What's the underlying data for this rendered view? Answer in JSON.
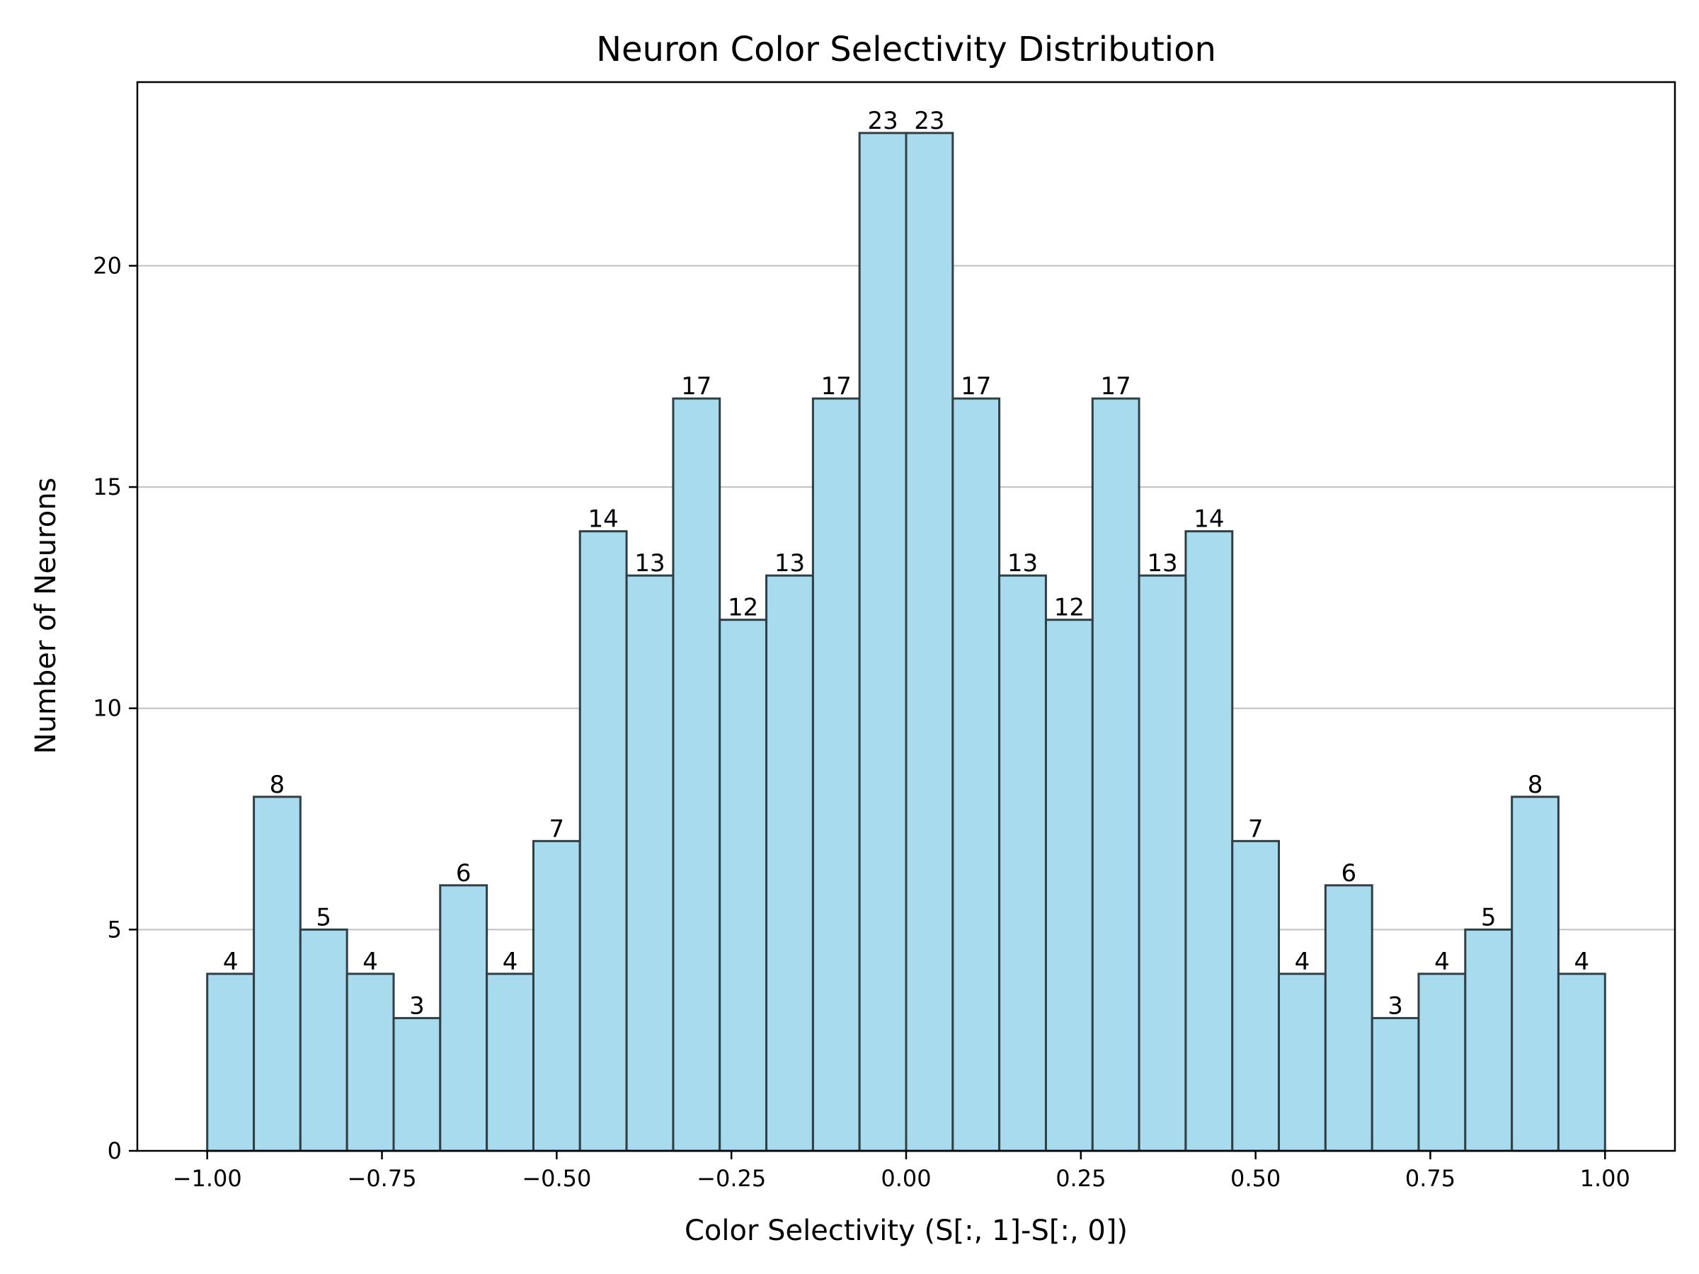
{
  "chart_data": {
    "type": "bar",
    "title": "Neuron Color Selectivity Distribution",
    "xlabel": "Color Selectivity (S[:, 1]-S[:, 0])",
    "ylabel": "Number of Neurons",
    "bin_edges": [
      -1.0,
      -0.9333,
      -0.8667,
      -0.8,
      -0.7333,
      -0.6667,
      -0.6,
      -0.5333,
      -0.4667,
      -0.4,
      -0.3333,
      -0.2667,
      -0.2,
      -0.1333,
      -0.0667,
      0.0,
      0.0667,
      0.1333,
      0.2,
      0.2667,
      0.3333,
      0.4,
      0.4667,
      0.5333,
      0.6,
      0.6667,
      0.7333,
      0.8,
      0.8667,
      0.9333,
      1.0
    ],
    "values": [
      4,
      8,
      5,
      4,
      3,
      6,
      4,
      7,
      14,
      13,
      17,
      12,
      13,
      17,
      23,
      23,
      17,
      13,
      12,
      17,
      13,
      14,
      7,
      4,
      6,
      3,
      4,
      5,
      8,
      4
    ],
    "xlim": [
      -1.1,
      1.1
    ],
    "ylim": [
      0,
      24.15
    ],
    "x_ticks": [
      -1.0,
      -0.75,
      -0.5,
      -0.25,
      0.0,
      0.25,
      0.5,
      0.75,
      1.0
    ],
    "x_tick_labels": [
      "−1.00",
      "−0.75",
      "−0.50",
      "−0.25",
      "0.00",
      "0.25",
      "0.50",
      "0.75",
      "1.00"
    ],
    "y_ticks": [
      0,
      5,
      10,
      15,
      20
    ],
    "y_tick_labels": [
      "0",
      "5",
      "10",
      "15",
      "20"
    ],
    "grid": "y",
    "bar_color": "#a9dbef",
    "edge_color": "#2f3f44",
    "grid_color": "#c0c0c0"
  }
}
